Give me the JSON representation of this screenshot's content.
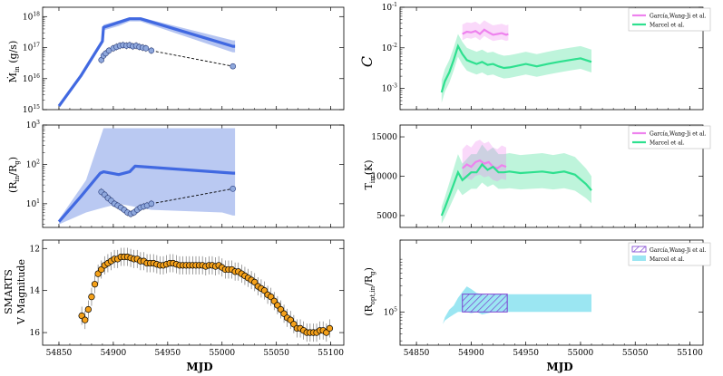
{
  "figure": {
    "xlabel": "MJD",
    "x_ticks": [
      54850,
      54900,
      54950,
      55000,
      55050,
      55100
    ]
  },
  "legend": {
    "garcia": "García,Wang-Ji et al.",
    "marcel": "Marcel et al."
  },
  "colors": {
    "model_blue": "#4169e1",
    "model_band": "#aebff0",
    "obs_marker": "#8fa8dc",
    "garcia": "#ee82ee",
    "marcel": "#2ee08f",
    "marcel_band": "#a8f0cf",
    "orange": "#f5a11a",
    "cyan": "#9be6f2"
  },
  "chart_data": [
    {
      "id": "mdot",
      "type": "line",
      "ylabel": "Ṁin (g/s)",
      "yscale": "log",
      "ylim": [
        1000000000000000.0,
        2e+18
      ],
      "y_ticks": [
        {
          "v": 1000000000000000.0,
          "label": "10^15"
        },
        {
          "v": 1e+16,
          "label": "10^16"
        },
        {
          "v": 1e+17,
          "label": "10^17"
        },
        {
          "v": 1e+18,
          "label": "10^18"
        }
      ],
      "series": [
        {
          "name": "model",
          "x": [
            54850,
            54870,
            54890,
            54891,
            54905,
            54915,
            54925,
            55010,
            55012
          ],
          "y": [
            1300000000000000.0,
            1.2e+16,
            1.6e+17,
            4.5e+17,
            6.5e+17,
            8.5e+17,
            8.5e+17,
            1.1e+17,
            1.1e+17
          ]
        },
        {
          "name": "model_band_upper",
          "x": [
            54891,
            54905,
            54915,
            54925,
            55010,
            55012
          ],
          "y": [
            5.5e+17,
            7.5e+17,
            9.5e+17,
            9.5e+17,
            1.7e+17,
            1.7e+17
          ]
        },
        {
          "name": "model_band_lower",
          "x": [
            54891,
            54905,
            54915,
            54925,
            55010,
            55012
          ],
          "y": [
            3.6e+17,
            5e+17,
            7e+17,
            7e+17,
            7e+16,
            7e+16
          ]
        },
        {
          "name": "observed",
          "x": [
            54889,
            54891,
            54893,
            54896,
            54900,
            54903,
            54906,
            54909,
            54912,
            54915,
            54918,
            54921,
            54924,
            54927,
            54930,
            54935
          ],
          "y": [
            4e+16,
            5.5e+16,
            6.5e+16,
            8e+16,
            9.5e+16,
            1.05e+17,
            1.15e+17,
            1.2e+17,
            1.15e+17,
            1.2e+17,
            1.1e+17,
            1.15e+17,
            1.05e+17,
            1e+17,
            9.5e+16,
            8e+16
          ]
        },
        {
          "name": "observed_trend",
          "x": [
            54935,
            55010
          ],
          "y": [
            8e+16,
            2.5e+16
          ]
        },
        {
          "name": "observed_end",
          "x": [
            55010
          ],
          "y": [
            2.5e+16
          ]
        }
      ]
    },
    {
      "id": "rin",
      "type": "line",
      "ylabel": "(Rin/Rg)",
      "yscale": "log",
      "ylim": [
        2.5,
        1000
      ],
      "y_ticks": [
        {
          "v": 10,
          "label": "10^1"
        },
        {
          "v": 100,
          "label": "10^2"
        },
        {
          "v": 1000,
          "label": "10^3"
        }
      ],
      "series": [
        {
          "name": "model",
          "x": [
            54850,
            54870,
            54888,
            54891,
            54905,
            54915,
            54920,
            55010,
            55012
          ],
          "y": [
            3.5,
            15,
            60,
            65,
            55,
            65,
            90,
            60,
            60
          ]
        },
        {
          "name": "band_upper",
          "x": [
            54850,
            54875,
            54891,
            54900,
            55010,
            55012
          ],
          "y": [
            4,
            40,
            830,
            830,
            830,
            830
          ]
        },
        {
          "name": "band_lower",
          "x": [
            54850,
            54875,
            54891,
            54905,
            54935,
            55000,
            55010,
            55012
          ],
          "y": [
            3,
            6,
            8,
            10,
            7,
            6,
            5,
            5
          ]
        },
        {
          "name": "observed",
          "x": [
            54889,
            54892,
            54895,
            54898,
            54901,
            54904,
            54907,
            54910,
            54913,
            54916,
            54919,
            54922,
            54925,
            54928,
            54931,
            54935
          ],
          "y": [
            20,
            17,
            14,
            12,
            10,
            9,
            8,
            7,
            6,
            5.5,
            6,
            7,
            8,
            8.5,
            9,
            10
          ]
        },
        {
          "name": "observed_trend",
          "x": [
            54935,
            55010
          ],
          "y": [
            10,
            24
          ]
        },
        {
          "name": "observed_end",
          "x": [
            55010
          ],
          "y": [
            24
          ]
        }
      ]
    },
    {
      "id": "vmag",
      "type": "scatter",
      "ylabel_line1": "SMARTS",
      "ylabel_line2": "V Magnitude",
      "ylim": [
        16.6,
        11.6
      ],
      "y_ticks": [
        {
          "v": 12,
          "label": "12"
        },
        {
          "v": 14,
          "label": "14"
        },
        {
          "v": 16,
          "label": "16"
        }
      ],
      "series": [
        {
          "name": "V",
          "x": [
            54871,
            54874,
            54877,
            54880,
            54883,
            54886,
            54889,
            54892,
            54895,
            54898,
            54901,
            54904,
            54907,
            54910,
            54913,
            54916,
            54919,
            54922,
            54925,
            54928,
            54931,
            54934,
            54937,
            54940,
            54943,
            54946,
            54949,
            54952,
            54955,
            54958,
            54961,
            54964,
            54967,
            54970,
            54973,
            54976,
            54979,
            54982,
            54985,
            54988,
            54991,
            54994,
            54997,
            55000,
            55003,
            55006,
            55009,
            55012,
            55015,
            55018,
            55021,
            55024,
            55027,
            55030,
            55033,
            55036,
            55039,
            55042,
            55045,
            55048,
            55051,
            55054,
            55057,
            55060,
            55063,
            55066,
            55069,
            55072,
            55075,
            55078,
            55081,
            55084,
            55087,
            55090,
            55093,
            55096,
            55099
          ],
          "y": [
            15.2,
            15.4,
            14.9,
            14.3,
            13.7,
            13.2,
            13.0,
            12.8,
            12.7,
            12.6,
            12.5,
            12.5,
            12.4,
            12.4,
            12.4,
            12.45,
            12.5,
            12.5,
            12.6,
            12.6,
            12.7,
            12.7,
            12.7,
            12.75,
            12.8,
            12.8,
            12.75,
            12.7,
            12.7,
            12.75,
            12.8,
            12.8,
            12.8,
            12.8,
            12.8,
            12.8,
            12.8,
            12.8,
            12.85,
            12.8,
            12.8,
            12.85,
            12.8,
            12.9,
            13.0,
            13.0,
            13.0,
            13.1,
            13.1,
            13.2,
            13.3,
            13.4,
            13.5,
            13.6,
            13.8,
            13.9,
            14.0,
            14.2,
            14.3,
            14.5,
            14.7,
            14.9,
            15.1,
            15.3,
            15.4,
            15.6,
            15.8,
            15.8,
            15.9,
            16.0,
            16.0,
            16.0,
            16.0,
            15.9,
            15.9,
            16.0,
            15.8
          ]
        }
      ]
    },
    {
      "id": "C",
      "type": "line",
      "ylabel": "C",
      "yscale": "log",
      "ylim": [
        0.0003,
        0.1
      ],
      "y_ticks": [
        {
          "v": 0.001,
          "label": "10^-3"
        },
        {
          "v": 0.01,
          "label": "10^-2"
        },
        {
          "v": 0.1,
          "label": "10^-1"
        }
      ],
      "series": [
        {
          "name": "garcia",
          "x": [
            54892,
            54896,
            54900,
            54904,
            54908,
            54912,
            54916,
            54920,
            54924,
            54928,
            54932,
            54934
          ],
          "y": [
            0.022,
            0.025,
            0.024,
            0.026,
            0.022,
            0.028,
            0.024,
            0.021,
            0.022,
            0.023,
            0.021,
            0.022
          ]
        },
        {
          "name": "marcel",
          "x": [
            54873,
            54876,
            54880,
            54884,
            54888,
            54892,
            54896,
            54900,
            54905,
            54910,
            54915,
            54920,
            54925,
            54930,
            54935,
            54940,
            54950,
            54960,
            54970,
            54980,
            54990,
            55000,
            55010
          ],
          "y": [
            0.0008,
            0.0015,
            0.0025,
            0.005,
            0.011,
            0.007,
            0.005,
            0.0045,
            0.004,
            0.0045,
            0.0038,
            0.004,
            0.0035,
            0.0032,
            0.0033,
            0.0035,
            0.004,
            0.0035,
            0.004,
            0.0045,
            0.005,
            0.0055,
            0.0045
          ]
        }
      ]
    },
    {
      "id": "Tirr",
      "type": "line",
      "ylabel": "Tirr(K)",
      "ylim": [
        3500,
        16500
      ],
      "y_ticks": [
        {
          "v": 5000,
          "label": "5000"
        },
        {
          "v": 10000,
          "label": "10000"
        },
        {
          "v": 15000,
          "label": "15000"
        }
      ],
      "series": [
        {
          "name": "garcia",
          "x": [
            54892,
            54896,
            54900,
            54904,
            54908,
            54912,
            54916,
            54920,
            54924,
            54928,
            54932
          ],
          "y": [
            11000,
            11500,
            11200,
            11800,
            12000,
            11600,
            11800,
            11200,
            11000,
            11400,
            11200
          ]
        },
        {
          "name": "marcel",
          "x": [
            54873,
            54876,
            54880,
            54884,
            54888,
            54892,
            54896,
            54900,
            54905,
            54910,
            54915,
            54920,
            54925,
            54930,
            54935,
            54945,
            54955,
            54965,
            54975,
            54985,
            54995,
            55005,
            55010
          ],
          "y": [
            5000,
            6000,
            7500,
            9000,
            10500,
            9500,
            10000,
            10500,
            10500,
            11500,
            10800,
            11200,
            10500,
            10500,
            10600,
            10400,
            10500,
            10600,
            10400,
            10600,
            10200,
            9000,
            8200
          ]
        }
      ]
    },
    {
      "id": "Ropt",
      "type": "area",
      "ylabel": "(Ropt,in/Rg)",
      "yscale": "log",
      "ylim": [
        25000,
        2000000
      ],
      "y_ticks": [
        {
          "v": 100000,
          "label": "10^5"
        }
      ],
      "series": [
        {
          "name": "garcia",
          "x": [
            54892,
            54933
          ],
          "upper": [
            210000,
            210000
          ],
          "lower": [
            100000,
            100000
          ]
        },
        {
          "name": "marcel",
          "x": [
            54874,
            54876,
            54880,
            54884,
            54888,
            54892,
            54896,
            54900,
            54905,
            54910,
            54915,
            54920,
            54925,
            54930,
            54935,
            54940,
            54950,
            55000,
            55010
          ],
          "upper": [
            60000,
            80000,
            110000,
            130000,
            180000,
            230000,
            290000,
            260000,
            220000,
            210000,
            200000,
            210000,
            210000,
            210000,
            210000,
            210000,
            210000,
            210000,
            210000
          ],
          "lower": [
            60000,
            70000,
            80000,
            90000,
            100000,
            100000,
            100000,
            95000,
            100000,
            90000,
            95000,
            100000,
            100000,
            100000,
            100000,
            100000,
            100000,
            100000,
            100000
          ]
        }
      ]
    }
  ]
}
